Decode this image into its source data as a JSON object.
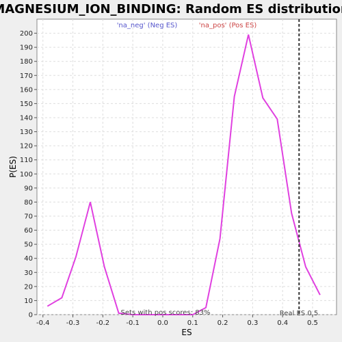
{
  "chart_data": {
    "type": "line",
    "title": "MAGNESIUM_ION_BINDING: Random ES distribution",
    "xlabel": "ES",
    "ylabel": "P(ES)",
    "xlim": [
      -0.42,
      0.58
    ],
    "ylim": [
      0,
      210
    ],
    "xticks": [
      -0.4,
      -0.3,
      -0.2,
      -0.1,
      0.0,
      0.1,
      0.2,
      0.3,
      0.4,
      0.5
    ],
    "xtick_labels": [
      "-0.4",
      "-0.3",
      "-0.2",
      "-0.1",
      "0.0",
      "0.1",
      "0.2",
      "0.3",
      "0.4",
      "0.5"
    ],
    "yticks": [
      0,
      10,
      20,
      30,
      40,
      50,
      60,
      70,
      80,
      90,
      100,
      110,
      120,
      130,
      140,
      150,
      160,
      170,
      180,
      190,
      200
    ],
    "grid": true,
    "legend": [
      {
        "label": "'na_neg' (Neg ES)",
        "color": "#5555cc"
      },
      {
        "label": "'na_pos' (Pos ES)",
        "color": "#cc4444"
      }
    ],
    "series": [
      {
        "color": "#e040e0",
        "x": [
          -0.385,
          -0.337,
          -0.29,
          -0.242,
          -0.195,
          -0.147,
          -0.1,
          0.0,
          0.1,
          0.144,
          0.191,
          0.239,
          0.286,
          0.334,
          0.382,
          0.43,
          0.477,
          0.525
        ],
        "y": [
          6,
          12,
          41,
          80,
          34,
          1,
          0,
          0,
          0,
          5,
          54,
          155,
          199,
          154,
          139,
          72,
          34,
          14
        ]
      }
    ],
    "real_es": 0.455,
    "real_es_label": "Real ES 0.5",
    "annotation": "Sets with pos scores: 83%"
  }
}
